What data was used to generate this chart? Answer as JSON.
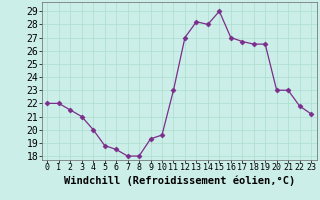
{
  "x": [
    0,
    1,
    2,
    3,
    4,
    5,
    6,
    7,
    8,
    9,
    10,
    11,
    12,
    13,
    14,
    15,
    16,
    17,
    18,
    19,
    20,
    21,
    22,
    23
  ],
  "y": [
    22,
    22,
    21.5,
    21,
    20,
    18.8,
    18.5,
    18,
    18,
    19.3,
    19.6,
    23,
    27,
    28.2,
    28,
    29,
    27,
    26.7,
    26.5,
    26.5,
    23,
    23,
    21.8,
    21.2
  ],
  "line_color": "#7B2D8B",
  "marker": "D",
  "marker_size": 2.5,
  "bg_color": "#cceee8",
  "grid_color": "#aaddcc",
  "xlabel": "Windchill (Refroidissement éolien,°C)",
  "xlabel_fontsize": 7.5,
  "yticks": [
    18,
    19,
    20,
    21,
    22,
    23,
    24,
    25,
    26,
    27,
    28,
    29
  ],
  "xticks": [
    0,
    1,
    2,
    3,
    4,
    5,
    6,
    7,
    8,
    9,
    10,
    11,
    12,
    13,
    14,
    15,
    16,
    17,
    18,
    19,
    20,
    21,
    22,
    23
  ],
  "ylim": [
    17.7,
    29.7
  ],
  "xlim": [
    -0.5,
    23.5
  ],
  "ytick_fontsize": 7,
  "xtick_fontsize": 6
}
